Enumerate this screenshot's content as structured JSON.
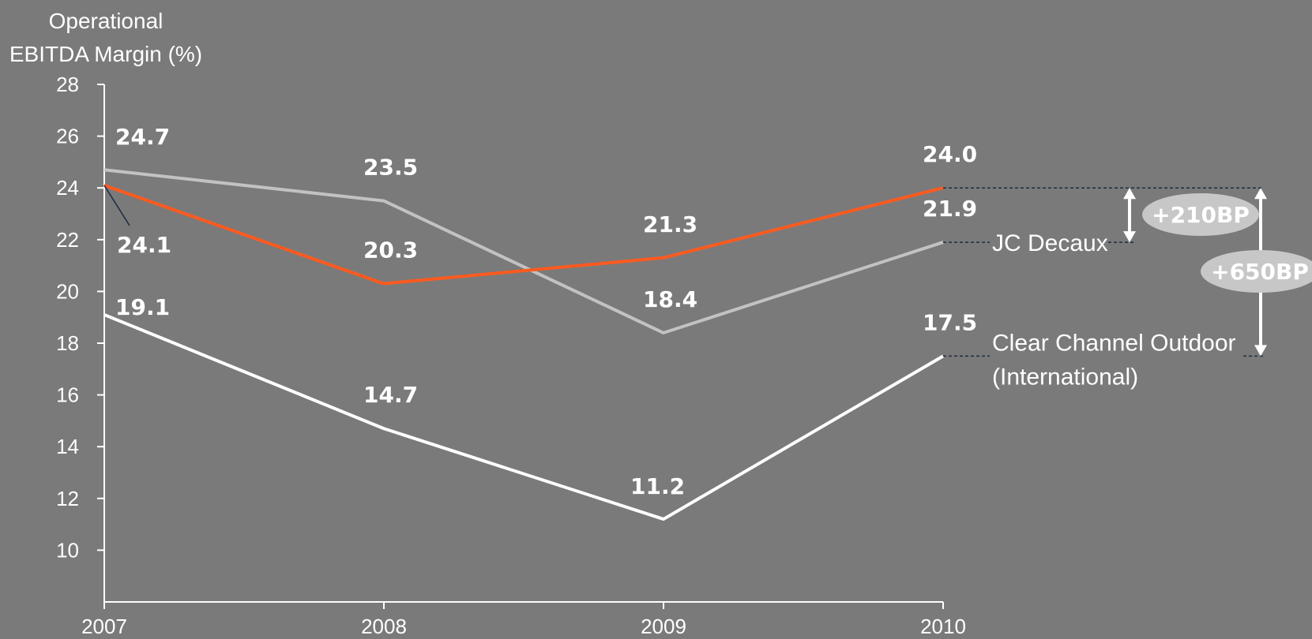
{
  "chart_data": {
    "type": "line",
    "ylabel": "Operational EBITDA Margin (%)",
    "ylabel_lines": [
      "Operational",
      "EBITDA Margin (%)"
    ],
    "x": [
      "2007",
      "2008",
      "2009",
      "2010"
    ],
    "ylim": [
      8,
      28
    ],
    "yticks": [
      "10",
      "12",
      "14",
      "16",
      "18",
      "20",
      "22",
      "24",
      "26",
      "28"
    ],
    "grid": false,
    "legend": "none",
    "series": [
      {
        "name": "",
        "values": [
          24.1,
          20.3,
          21.3,
          24.0
        ],
        "labels": [
          "24.1",
          "20.3",
          "21.3",
          "24.0"
        ],
        "color": "#ff5a1f"
      },
      {
        "name": "JC Decaux",
        "values": [
          24.7,
          23.5,
          18.4,
          21.9
        ],
        "labels": [
          "24.7",
          "23.5",
          "18.4",
          "21.9"
        ],
        "color": "#c2c2c2"
      },
      {
        "name": "Clear Channel Outdoor (International)",
        "name_lines": [
          "Clear Channel Outdoor",
          "(International)"
        ],
        "values": [
          19.1,
          14.7,
          11.2,
          17.5
        ],
        "labels": [
          "19.1",
          "14.7",
          "11.2",
          "17.5"
        ],
        "color": "#ffffff"
      }
    ],
    "annotations": [
      "+210BP",
      "+650BP"
    ]
  }
}
